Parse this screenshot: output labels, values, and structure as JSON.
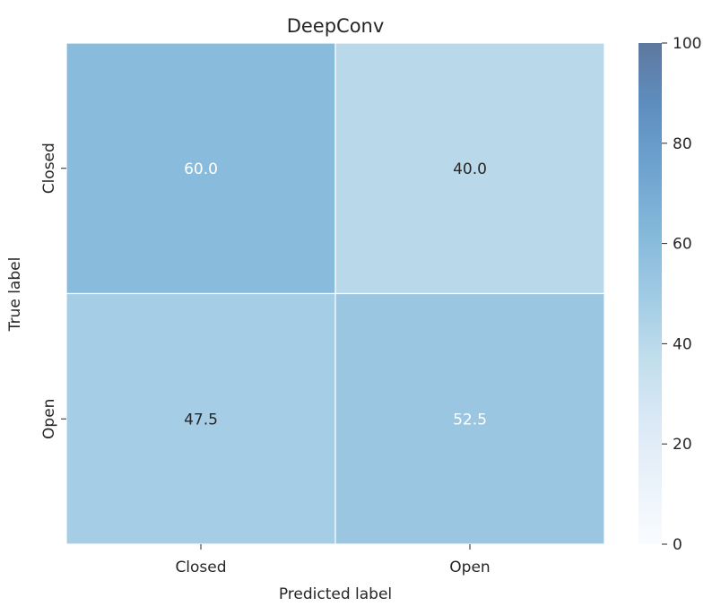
{
  "chart_data": {
    "type": "heatmap",
    "title": "DeepConv",
    "xlabel": "Predicted label",
    "ylabel": "True label",
    "x_categories": [
      "Closed",
      "Open"
    ],
    "y_categories": [
      "Closed",
      "Open"
    ],
    "values": [
      [
        60.0,
        40.0
      ],
      [
        47.5,
        52.5
      ]
    ],
    "value_labels": [
      [
        "60.0",
        "40.0"
      ],
      [
        "47.5",
        "52.5"
      ]
    ],
    "colorbar": {
      "range": [
        0,
        100
      ],
      "ticks": [
        0,
        20,
        40,
        60,
        80,
        100
      ],
      "tick_labels": [
        "0",
        "20",
        "40",
        "60",
        "80",
        "100"
      ],
      "colors": [
        "#f7fbff",
        "#deebf7",
        "#c6dbef",
        "#9ecae1",
        "#6baed6",
        "#4292c6",
        "#2171b5",
        "#08519c",
        "#08306b"
      ]
    },
    "colormap": "Blues",
    "alpha": 0.65,
    "grid": false
  }
}
